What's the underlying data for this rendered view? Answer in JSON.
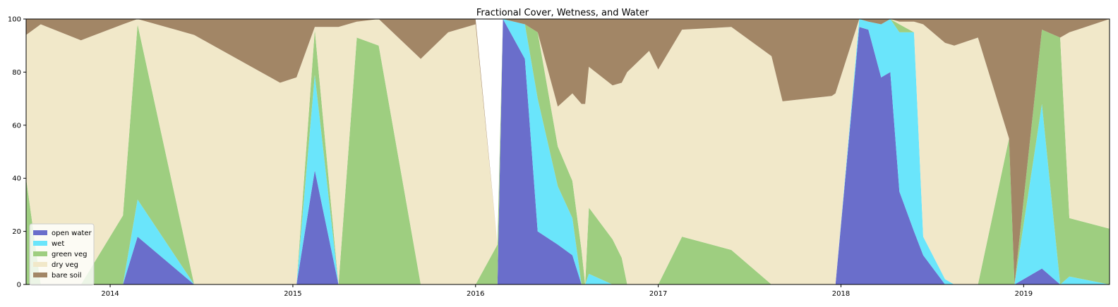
{
  "chart_data": {
    "type": "area",
    "stacked": true,
    "title": "Fractional Cover, Wetness, and Water",
    "xlabel": "",
    "ylabel": "",
    "xlim": [
      2013.54,
      2019.47
    ],
    "ylim": [
      0,
      100
    ],
    "x_ticks": [
      2014,
      2015,
      2016,
      2017,
      2018,
      2019
    ],
    "x_tick_labels": [
      "2014",
      "2015",
      "2016",
      "2017",
      "2018",
      "2019"
    ],
    "y_ticks": [
      0,
      20,
      40,
      60,
      80,
      100
    ],
    "y_tick_labels": [
      "0",
      "20",
      "40",
      "60",
      "80",
      "100"
    ],
    "grid": false,
    "legend_placement": "lower-left",
    "x": [
      2013.54,
      2013.62,
      2013.84,
      2014.07,
      2014.15,
      2014.46,
      2014.93,
      2015.02,
      2015.12,
      2015.25,
      2015.35,
      2015.47,
      2015.7,
      2015.85,
      2016.0,
      2016.12,
      2016.15,
      2016.27,
      2016.34,
      2016.45,
      2016.53,
      2016.58,
      2016.6,
      2016.62,
      2016.75,
      2016.8,
      2016.83,
      2016.95,
      2017.0,
      2017.13,
      2017.4,
      2017.62,
      2017.68,
      2017.95,
      2017.97,
      2018.1,
      2018.15,
      2018.22,
      2018.27,
      2018.32,
      2018.4,
      2018.45,
      2018.57,
      2018.62,
      2018.75,
      2018.92,
      2018.95,
      2019.1,
      2019.2,
      2019.25,
      2019.47
    ],
    "series": [
      {
        "name": "open water",
        "color": "#6a6ecb",
        "values": [
          0,
          0,
          0,
          0,
          18,
          0,
          0,
          0,
          43,
          0,
          0,
          0,
          0,
          0,
          0,
          0,
          100,
          85,
          20,
          15,
          11,
          0,
          0,
          0,
          0,
          0,
          0,
          0,
          0,
          0,
          0,
          0,
          0,
          0,
          0,
          97,
          96,
          78,
          80,
          35,
          20,
          11,
          0,
          0,
          0,
          0,
          0,
          6,
          0,
          0,
          0
        ]
      },
      {
        "name": "wet",
        "color": "#6ae5fb",
        "values": [
          0,
          0,
          0,
          0,
          14,
          0,
          0,
          0,
          36,
          0,
          0,
          0,
          0,
          0,
          0,
          0,
          0,
          13,
          50,
          22,
          14,
          0,
          0,
          4,
          0,
          0,
          0,
          0,
          0,
          0,
          0,
          0,
          0,
          0,
          0,
          3,
          3,
          20,
          20,
          60,
          75,
          7,
          2,
          0,
          0,
          0,
          0,
          62,
          0,
          3,
          0
        ]
      },
      {
        "name": "green veg",
        "color": "#9ece80",
        "values": [
          40,
          0,
          0,
          26,
          66,
          0,
          0,
          0,
          17,
          0,
          93,
          90,
          0,
          0,
          0,
          15,
          0,
          0,
          25,
          15,
          14,
          13,
          0,
          25,
          17,
          10,
          0,
          0,
          0,
          18,
          13,
          0,
          0,
          0,
          0,
          0,
          0,
          0,
          0,
          3,
          0,
          0,
          0,
          0,
          0,
          55,
          0,
          28,
          93,
          22,
          21
        ]
      },
      {
        "name": "dry veg",
        "color": "#f1e8c9",
        "values": [
          54,
          98,
          92,
          72,
          2,
          94,
          76,
          78,
          1,
          97,
          6,
          10,
          85,
          95,
          98,
          0,
          0,
          0,
          0,
          15,
          33,
          55,
          68,
          53,
          58,
          66,
          80,
          88,
          81,
          78,
          84,
          86,
          69,
          71,
          72,
          0,
          0,
          0,
          0,
          1,
          4,
          80,
          89,
          90,
          93,
          0,
          0,
          0,
          0,
          70,
          79
        ]
      },
      {
        "name": "bare soil",
        "color": "#a28666",
        "values": [
          6,
          2,
          8,
          2,
          0,
          6,
          24,
          22,
          3,
          3,
          1,
          0,
          15,
          5,
          2,
          0,
          0,
          2,
          5,
          33,
          28,
          32,
          32,
          18,
          25,
          24,
          20,
          12,
          19,
          4,
          3,
          14,
          31,
          29,
          28,
          0,
          1,
          2,
          0,
          1,
          1,
          2,
          9,
          10,
          7,
          45,
          100,
          4,
          7,
          5,
          0
        ]
      }
    ]
  }
}
